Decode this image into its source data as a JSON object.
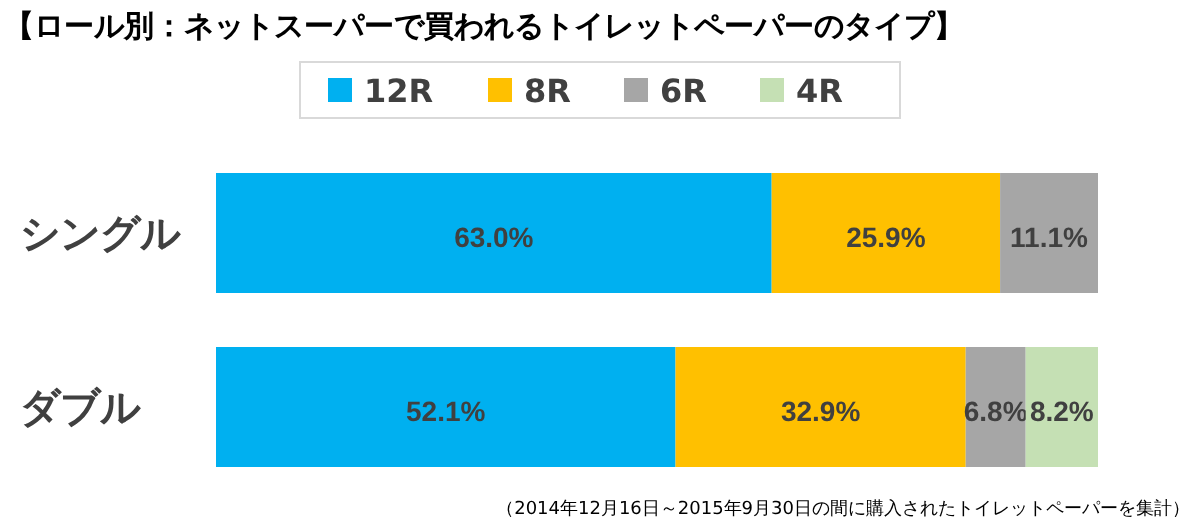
{
  "chart_data": {
    "type": "bar",
    "orientation": "horizontal",
    "stacked": true,
    "title": "【ロール別：ネットスーパーで買われるトイレットペーパーのタイプ】",
    "categories": [
      "シングル",
      "ダブル"
    ],
    "xlim": [
      0,
      100
    ],
    "legend": "top",
    "tick_labels": "y",
    "series": [
      {
        "name": "12R",
        "color": "#00b0f0",
        "values": [
          63.0,
          52.1
        ],
        "value_labels": [
          "63.0%",
          "52.1%"
        ]
      },
      {
        "name": "8R",
        "color": "#ffc000",
        "values": [
          25.9,
          32.9
        ],
        "value_labels": [
          "25.9%",
          "32.9%"
        ]
      },
      {
        "name": "6R",
        "color": "#a6a6a6",
        "values": [
          11.1,
          6.8
        ],
        "value_labels": [
          "11.1%",
          "6.8%"
        ]
      },
      {
        "name": "4R",
        "color": "#c5e0b4",
        "values": [
          null,
          8.2
        ],
        "value_labels": [
          null,
          "8.2%"
        ]
      }
    ],
    "annotations": [
      "（2014年12月16日～2015年9月30日の間に購入されたトイレットペーパーを集計）"
    ]
  }
}
